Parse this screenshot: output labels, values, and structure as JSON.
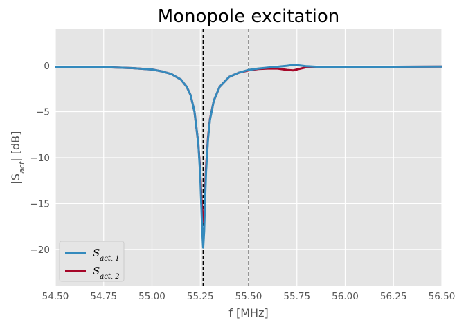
{
  "chart_data": {
    "type": "line",
    "title": "Monopole excitation",
    "xlabel": "f [MHz]",
    "ylabel": {
      "main": "|S",
      "sub": "act",
      "tail": "| [dB]"
    },
    "xlim": [
      54.5,
      56.5
    ],
    "ylim": [
      -24,
      4
    ],
    "xticks": [
      54.5,
      54.75,
      55.0,
      55.25,
      55.5,
      55.75,
      56.0,
      56.25,
      56.5
    ],
    "xtick_labels": [
      "54.50",
      "54.75",
      "55.00",
      "55.25",
      "55.50",
      "55.75",
      "56.00",
      "56.25",
      "56.50"
    ],
    "yticks": [
      0,
      -5,
      -10,
      -15,
      -20
    ],
    "ytick_labels": [
      "0",
      "−5",
      "−10",
      "−15",
      "−20"
    ],
    "grid": true,
    "legend_position": "lower-left",
    "vlines": [
      {
        "x": 55.265,
        "color": "#000000",
        "style": "dashed"
      },
      {
        "x": 55.5,
        "color": "#808080",
        "style": "dashed"
      }
    ],
    "x": [
      54.5,
      54.75,
      54.9,
      55.0,
      55.05,
      55.1,
      55.15,
      55.18,
      55.2,
      55.22,
      55.24,
      55.25,
      55.255,
      55.26,
      55.265,
      55.27,
      55.275,
      55.28,
      55.29,
      55.3,
      55.32,
      55.35,
      55.4,
      55.45,
      55.5,
      55.55,
      55.6,
      55.65,
      55.7,
      55.73,
      55.76,
      55.8,
      55.85,
      55.9,
      56.0,
      56.25,
      56.5
    ],
    "series": [
      {
        "name_main": "S",
        "name_sub": "act, 1",
        "color": "#348ABD",
        "values": [
          -0.1,
          -0.15,
          -0.25,
          -0.4,
          -0.6,
          -0.9,
          -1.5,
          -2.3,
          -3.2,
          -5.0,
          -8.5,
          -12.0,
          -15.0,
          -18.0,
          -19.8,
          -18.0,
          -14.5,
          -11.5,
          -8.0,
          -5.9,
          -3.8,
          -2.3,
          -1.2,
          -0.75,
          -0.45,
          -0.3,
          -0.2,
          -0.1,
          0.0,
          0.1,
          0.05,
          -0.05,
          -0.1,
          -0.1,
          -0.1,
          -0.1,
          -0.08
        ]
      },
      {
        "name_main": "S",
        "name_sub": "act, 2",
        "color": "#A60628",
        "values": [
          -0.1,
          -0.15,
          -0.25,
          -0.4,
          -0.6,
          -0.9,
          -1.5,
          -2.3,
          -3.2,
          -5.0,
          -8.5,
          -11.5,
          -14.0,
          -16.0,
          -17.0,
          -16.0,
          -13.5,
          -11.0,
          -7.8,
          -5.8,
          -3.8,
          -2.3,
          -1.2,
          -0.75,
          -0.5,
          -0.35,
          -0.3,
          -0.3,
          -0.45,
          -0.5,
          -0.35,
          -0.15,
          -0.1,
          -0.1,
          -0.1,
          -0.1,
          -0.08
        ]
      }
    ]
  }
}
